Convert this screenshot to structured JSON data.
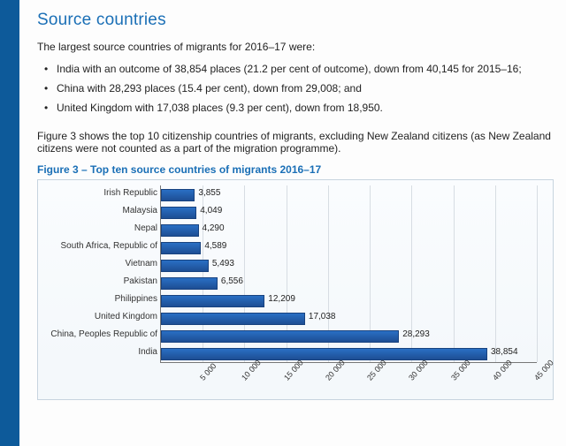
{
  "header": {
    "title": "Source countries"
  },
  "text": {
    "intro": "The largest source countries of migrants for 2016–17 were:",
    "bullets": [
      "India with an outcome of 38,854 places (21.2 per cent of outcome), down from 40,145 for 2015–16;",
      "China with 28,293 places (15.4 per cent), down from 29,008; and",
      "United Kingdom with 17,038 places (9.3 per cent), down from 18,950."
    ],
    "para2": "Figure 3 shows the top 10 citizenship countries of migrants, excluding New Zealand citizens (as New Zealand citizens were not counted as a part of the migration programme).",
    "fig_caption": "Figure 3 – Top ten source countries of migrants 2016–17"
  },
  "chart": {
    "type": "bar-horizontal",
    "xlim": [
      0,
      45000
    ],
    "xticks": [
      5000,
      10000,
      15000,
      20000,
      25000,
      30000,
      35000,
      40000,
      45000
    ],
    "xtick_labels": [
      "5 000",
      "10 000",
      "15 000",
      "20 000",
      "25 000",
      "30 000",
      "35 000",
      "40 000",
      "45 000"
    ],
    "bar_color_top": "#2a6fc4",
    "bar_color_bottom": "#1e4e94",
    "bar_border": "#18427f",
    "grid_color": "#d7dde3",
    "background": "#fafcfe",
    "categories": [
      {
        "label": "Irish Republic",
        "value": 3855,
        "value_label": "3,855"
      },
      {
        "label": "Malaysia",
        "value": 4049,
        "value_label": "4,049"
      },
      {
        "label": "Nepal",
        "value": 4290,
        "value_label": "4,290"
      },
      {
        "label": "South Africa, Republic of",
        "value": 4589,
        "value_label": "4,589"
      },
      {
        "label": "Vietnam",
        "value": 5493,
        "value_label": "5,493"
      },
      {
        "label": "Pakistan",
        "value": 6556,
        "value_label": "6,556"
      },
      {
        "label": "Philippines",
        "value": 12209,
        "value_label": "12,209"
      },
      {
        "label": "United Kingdom",
        "value": 17038,
        "value_label": "17,038"
      },
      {
        "label": "China, Peoples Republic of",
        "value": 28293,
        "value_label": "28,293"
      },
      {
        "label": "India",
        "value": 38854,
        "value_label": "38,854"
      }
    ]
  }
}
